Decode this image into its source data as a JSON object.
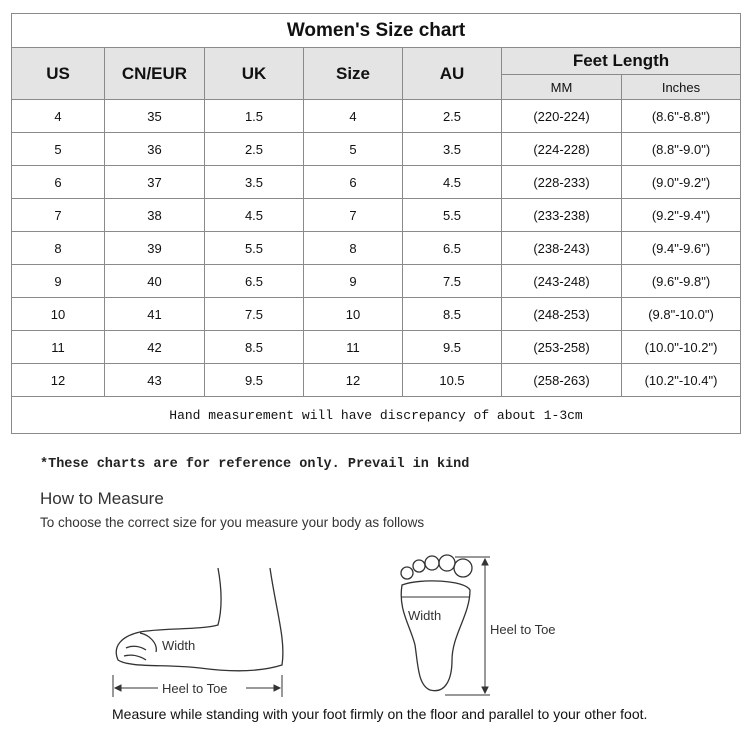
{
  "table": {
    "title": "Women's Size chart",
    "headers": [
      "US",
      "CN/EUR",
      "UK",
      "Size",
      "AU"
    ],
    "feet_length": {
      "label": "Feet Length",
      "mm": "MM",
      "inches": "Inches"
    },
    "rows": [
      [
        "4",
        "35",
        "1.5",
        "4",
        "2.5",
        "(220-224)",
        "(8.6\"-8.8\")"
      ],
      [
        "5",
        "36",
        "2.5",
        "5",
        "3.5",
        "(224-228)",
        "(8.8\"-9.0\")"
      ],
      [
        "6",
        "37",
        "3.5",
        "6",
        "4.5",
        "(228-233)",
        "(9.0\"-9.2\")"
      ],
      [
        "7",
        "38",
        "4.5",
        "7",
        "5.5",
        "(233-238)",
        "(9.2\"-9.4\")"
      ],
      [
        "8",
        "39",
        "5.5",
        "8",
        "6.5",
        "(238-243)",
        "(9.4\"-9.6\")"
      ],
      [
        "9",
        "40",
        "6.5",
        "9",
        "7.5",
        "(243-248)",
        "(9.6\"-9.8\")"
      ],
      [
        "10",
        "41",
        "7.5",
        "10",
        "8.5",
        "(248-253)",
        "(9.8\"-10.0\")"
      ],
      [
        "11",
        "42",
        "8.5",
        "11",
        "9.5",
        "(253-258)",
        "(10.0\"-10.2\")"
      ],
      [
        "12",
        "43",
        "9.5",
        "12",
        "10.5",
        "(258-263)",
        "(10.2\"-10.4\")"
      ]
    ],
    "footer": "Hand measurement will have discrepancy of about 1-3cm"
  },
  "note": "*These charts are for reference only. Prevail in kind",
  "how_to": {
    "title": "How to Measure",
    "subtitle": "To choose the correct size for you measure your body as follows",
    "side_width": "Width",
    "side_heel_to_toe": "Heel to Toe",
    "sole_width": "Width",
    "sole_heel_to_toe": "Heel to Toe",
    "caption": "Measure while standing with your foot firmly on the floor and parallel to your other foot."
  }
}
